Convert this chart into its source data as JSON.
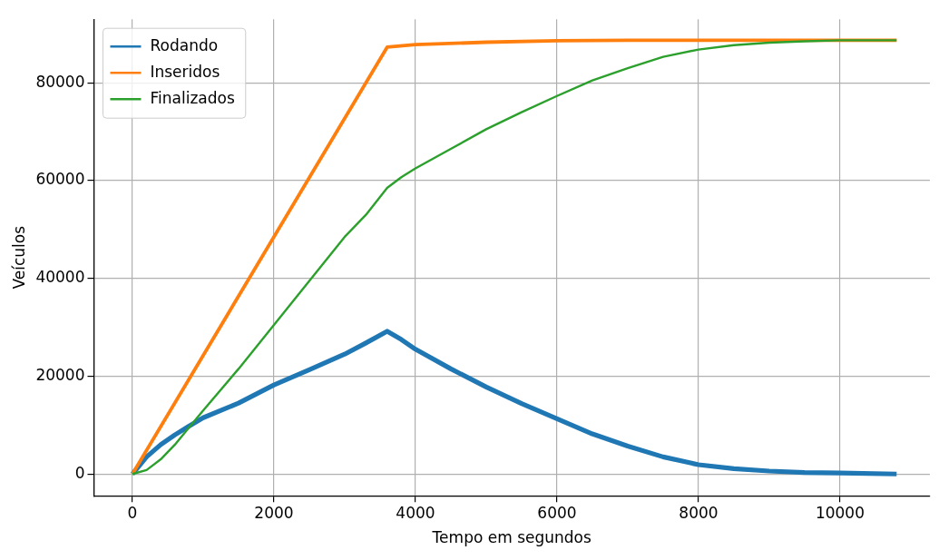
{
  "chart_data": {
    "type": "line",
    "xlabel": "Tempo em segundos",
    "ylabel": "Veículos",
    "xlim": [
      -545,
      11270
    ],
    "ylim": [
      -4450,
      93000
    ],
    "xticks": [
      0,
      2000,
      4000,
      6000,
      8000,
      10000
    ],
    "yticks": [
      0,
      20000,
      40000,
      60000,
      80000
    ],
    "grid": true,
    "legend": "top left",
    "marker": "none",
    "line_style": "solid",
    "series": [
      {
        "name": "Rodando",
        "color": "#1f77b4",
        "x": [
          0,
          200,
          400,
          600,
          800,
          1000,
          1500,
          2000,
          2500,
          3000,
          3300,
          3600,
          3800,
          4000,
          4500,
          5000,
          5500,
          6000,
          6500,
          7000,
          7500,
          8000,
          8500,
          9000,
          9500,
          10000,
          10800
        ],
        "values": [
          0,
          3500,
          6000,
          8000,
          9800,
          11500,
          14500,
          18200,
          21300,
          24500,
          26800,
          29200,
          27500,
          25500,
          21500,
          17800,
          14400,
          11300,
          8200,
          5700,
          3500,
          1900,
          1100,
          600,
          300,
          200,
          0
        ]
      },
      {
        "name": "Inseridos",
        "color": "#ff7f0e",
        "x": [
          0,
          3600,
          4000,
          5000,
          6000,
          7000,
          10800
        ],
        "values": [
          0,
          87300,
          87800,
          88300,
          88600,
          88700,
          88700
        ]
      },
      {
        "name": "Finalizados",
        "color": "#2ca02c",
        "x": [
          0,
          200,
          400,
          600,
          800,
          1000,
          1500,
          2000,
          2500,
          3000,
          3300,
          3600,
          3800,
          4000,
          4500,
          5000,
          5500,
          6000,
          6500,
          7000,
          7500,
          8000,
          8500,
          9000,
          9500,
          10000,
          10800
        ],
        "values": [
          0,
          800,
          3000,
          6000,
          9500,
          13000,
          21500,
          30500,
          39500,
          48500,
          53000,
          58500,
          60700,
          62500,
          66500,
          70500,
          74000,
          77300,
          80500,
          83000,
          85300,
          86800,
          87700,
          88200,
          88500,
          88700,
          88700
        ]
      }
    ]
  }
}
